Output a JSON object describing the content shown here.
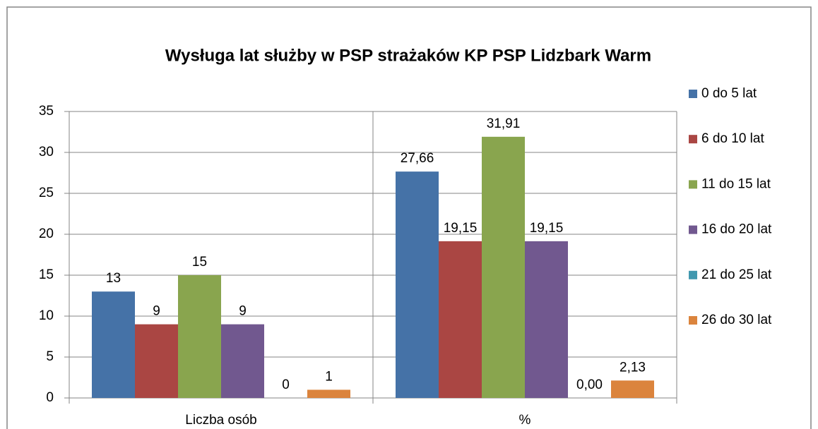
{
  "chart_data": {
    "type": "bar",
    "title": "Wysługa lat służby w PSP strażaków KP PSP Lidzbark Warm",
    "categories": [
      "Liczba osób",
      "%"
    ],
    "series": [
      {
        "name": "0 do 5 lat",
        "color": "#4572a7",
        "values": [
          13,
          27.66
        ],
        "value_labels": [
          "13",
          "27,66"
        ]
      },
      {
        "name": "6 do 10 lat",
        "color": "#aa4643",
        "values": [
          9,
          19.15
        ],
        "value_labels": [
          "9",
          "19,15"
        ]
      },
      {
        "name": "11 do 15 lat",
        "color": "#89a54e",
        "values": [
          15,
          31.91
        ],
        "value_labels": [
          "15",
          "31,91"
        ]
      },
      {
        "name": "16 do 20 lat",
        "color": "#71588f",
        "values": [
          9,
          19.15
        ],
        "value_labels": [
          "9",
          "19,15"
        ]
      },
      {
        "name": "21 do 25 lat",
        "color": "#4198af",
        "values": [
          0,
          0
        ],
        "value_labels": [
          "0",
          "0,00"
        ]
      },
      {
        "name": "26 do 30 lat",
        "color": "#db843d",
        "values": [
          1,
          2.13
        ],
        "value_labels": [
          "1",
          "2,13"
        ]
      }
    ],
    "ylim": [
      0,
      35
    ],
    "yticks": [
      0,
      5,
      10,
      15,
      20,
      25,
      30,
      35
    ],
    "grid": true,
    "legend": "right"
  }
}
